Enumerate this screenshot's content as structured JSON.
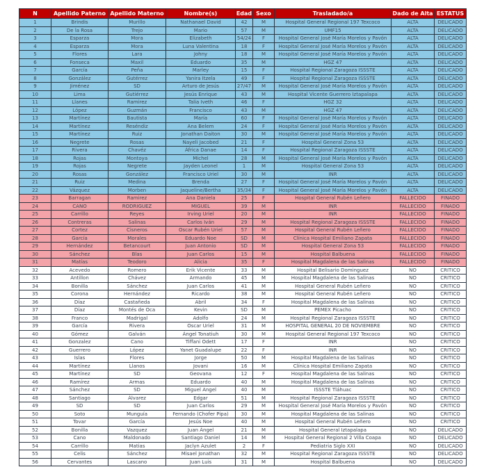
{
  "colors": {
    "header": "#c00000",
    "alta": "#8ecae6",
    "fallecido": "#f4a3a8",
    "no": "#ffffff"
  },
  "headers": [
    "N",
    "Apellido Paterno",
    "Apellido Materno",
    "Nombre(s)",
    "Edad",
    "Sexo",
    "Trasladado/a",
    "Dado de Alta",
    "ESTATUS"
  ],
  "rows": [
    [
      "1",
      "Brindis",
      "Murillo",
      "Nathanael David",
      "42",
      "M",
      "Hospital General Regional 197 Texcoco",
      "ALTA",
      "DELICADO"
    ],
    [
      "2",
      "De la Rosa",
      "Trejo",
      "Mario",
      "57",
      "M",
      "UMF15",
      "ALTA",
      "DELICADO"
    ],
    [
      "3",
      "Esparza",
      "Mora",
      "Elizabeth",
      "54/24",
      "F",
      "Hospital General José María Morelos y Pavón",
      "ALTA",
      "DELICADO"
    ],
    [
      "4",
      "Esparza",
      "Mora",
      "Luna Valentina",
      "18",
      "F",
      "Hospital General José María Morelos y Pavón",
      "ALTA",
      "DELICADO"
    ],
    [
      "5",
      "Flores",
      "Lara",
      "Johny",
      "18",
      "M",
      "Hospital General José María Morelos y Pavón",
      "ALTA",
      "DELICADO"
    ],
    [
      "6",
      "Fonseca",
      "Maxil",
      "Eduardo",
      "35",
      "M",
      "HGZ 47",
      "ALTA",
      "DELICADO"
    ],
    [
      "7",
      "García",
      "Peña",
      "Marley",
      "15",
      "F",
      "Hospital Regional Zaragoza ISSSTE",
      "ALTA",
      "DELICADO"
    ],
    [
      "8",
      "González",
      "Gutérrez",
      "Yanira Itzela",
      "49",
      "F",
      "Hospital Regional Zaragoza ISSSTE",
      "ALTA",
      "DELICADO"
    ],
    [
      "9",
      "Jiménez",
      "SD",
      "Arturo de Jesús",
      "27/47",
      "M",
      "Hospital General José María Morelos y Pavón",
      "ALTA",
      "DELICADO"
    ],
    [
      "10",
      "Lima",
      "Gutiérrez",
      "Jesús Enrique",
      "43",
      "M",
      "Hospital Vicente Guerrero Iztapalapa",
      "ALTA",
      "DELICADO"
    ],
    [
      "11",
      "Llanes",
      "Ramirez",
      "Talia Iveth",
      "46",
      "F",
      "HGZ 32",
      "ALTA",
      "DELICADO"
    ],
    [
      "12",
      "López",
      "Guzmán",
      "Francisco",
      "43",
      "M",
      "HGZ 47",
      "ALTA",
      "DELICADO"
    ],
    [
      "13",
      "Martínez",
      "Bautista",
      "María",
      "60",
      "F",
      "Hospital General José María Morelos y Pavón",
      "ALTA",
      "DELICADO"
    ],
    [
      "14",
      "Martínez",
      "Reséndiz",
      "Ana Belem",
      "24",
      "F",
      "Hospital General José María Morelos y Pavón",
      "ALTA",
      "DELICADO"
    ],
    [
      "15",
      "Martínez",
      "Ruiz",
      "Jonathan Daiton",
      "30",
      "M",
      "Hospital General José María Morelos y Pavón",
      "ALTA",
      "DELICADO"
    ],
    [
      "16",
      "Negrete",
      "Rosas",
      "Nayeli Jacobed",
      "21",
      "F",
      "Hospital General Zona 53",
      "ALTA",
      "DELICADO"
    ],
    [
      "17",
      "Rivera",
      "Chavéz",
      "África Danae",
      "14",
      "F",
      "Hospital Regional Zaragoza ISSSTE",
      "ALTA",
      "DELICADO"
    ],
    [
      "18",
      "Rojas",
      "Montoya",
      "Michel",
      "28",
      "M",
      "Hospital General José María Morelos y Pavón",
      "ALTA",
      "DELICADO"
    ],
    [
      "19",
      "Rojas",
      "Negrete",
      "Jayden Leonel",
      "1",
      "M",
      "Hospital General Zona 53",
      "ALTA",
      "DELICADO"
    ],
    [
      "20",
      "Rosas",
      "González",
      "Francisco Uriel",
      "30",
      "M",
      "INR",
      "ALTA",
      "DELICADO"
    ],
    [
      "21",
      "Ruiz",
      "Medina",
      "Brenda",
      "27",
      "F",
      "Hospital General José María Morelos y Pavón",
      "ALTA",
      "DELICADO"
    ],
    [
      "22",
      "Vázquez",
      "Morben",
      "Jaqueline/Bertha",
      "35/34",
      "F",
      "Hospital General José María Morelos y Pavón",
      "ALTA",
      "DELICADO"
    ],
    [
      "23",
      "Barragan",
      "Ramirez",
      "Ana Daniela",
      "25",
      "F",
      "Hospital General Rubén Leñero",
      "FALLECIDO",
      "FINADO"
    ],
    [
      "24",
      "CANO",
      "RODRIGUEZ",
      "MIGUEL",
      "39",
      "M",
      "INR",
      "FALLECIDO",
      "FINADO"
    ],
    [
      "25",
      "Carrillo",
      "Reyes",
      "Irving Uriel",
      "20",
      "M",
      "INR",
      "FALLECIDO",
      "FINADO"
    ],
    [
      "26",
      "Contreras",
      "Salinas",
      "Carlos Iván",
      "29",
      "M",
      "Hospital Regional Zaragoza ISSSTE",
      "FALLECIDO",
      "FINADO"
    ],
    [
      "27",
      "Cortez",
      "Cisneros",
      "Oscar Rubén Uriel",
      "57",
      "M",
      "Hospital General Rubén Leñero",
      "FALLECIDO",
      "FINADO"
    ],
    [
      "28",
      "García",
      "Morales",
      "Eduardo Noe",
      "SD",
      "M",
      "Clínica Hospital Emiliano Zapata",
      "FALLECIDO",
      "FINADO"
    ],
    [
      "29",
      "Hernández",
      "Betancourt",
      "Juan Antonio",
      "SD",
      "M",
      "Hospital General Zona 53",
      "FALLECIDO",
      "FINADO"
    ],
    [
      "30",
      "Sánchez",
      "Blas",
      "Juan Carlos",
      "15",
      "M",
      "Hospital Balbuena",
      "FALLECIDO",
      "FINADO"
    ],
    [
      "31",
      "Matías",
      "Teodoro",
      "Alicia",
      "35",
      "F",
      "Hospital Magdalena de las Salinas",
      "FALLECIDO",
      "FINADO"
    ],
    [
      "32",
      "Acevedo",
      "Romero",
      "Erik Vicente",
      "33",
      "M",
      "Hospital Belisario Dominguez",
      "NO",
      "CRITICO"
    ],
    [
      "33",
      "Antillon",
      "Chávez",
      "Armando",
      "45",
      "M",
      "Hospital Magdalena de las Salinas",
      "NO",
      "CRITICO"
    ],
    [
      "34",
      "Bonilla",
      "Sánchez",
      "Juan Carlos",
      "41",
      "M",
      "Hospital General Rubén Leñero",
      "NO",
      "CRITICO"
    ],
    [
      "35",
      "Corona",
      "Hernández",
      "Ricardo",
      "38",
      "M",
      "Hospital General Rubén Leñero",
      "NO",
      "CRITICO"
    ],
    [
      "36",
      "Díaz",
      "Castañeda",
      "Abril",
      "34",
      "F",
      "Hospital Magdalena de las Salinas",
      "NO",
      "CRITICO"
    ],
    [
      "37",
      "Díaz",
      "Montés de Oca",
      "Kevin",
      "SD",
      "M",
      "PEMEX Picacho",
      "NO",
      "CRITICO"
    ],
    [
      "38",
      "Franco",
      "Madrigal",
      "Adolfo",
      "24",
      "M",
      "Hospital Regional Zaragoza ISSSTE",
      "NO",
      "CRITICO"
    ],
    [
      "39",
      "García",
      "Rivera",
      "Oscar Uriel",
      "31",
      "M",
      "HOSPITAL GENERAL 20 DE NOVIEMBRE",
      "NO",
      "CRITICO"
    ],
    [
      "40",
      "Gómez",
      "Galván",
      "Ángel Tonatiuh",
      "30",
      "M",
      "Hospital General Regional 197 Texcoco",
      "NO",
      "CRITICO"
    ],
    [
      "41",
      "Gonzalez",
      "Cano",
      "Tiffani Odett",
      "17",
      "F",
      "INR",
      "NO",
      "CRITICO"
    ],
    [
      "42",
      "Guerrero",
      "López",
      "Yanet Guadalupe",
      "22",
      "F",
      "INR",
      "NO",
      "CRITICO"
    ],
    [
      "43",
      "Islas",
      "Flores",
      "Jorge",
      "50",
      "M",
      "Hospital Magdalena de las Salinas",
      "NO",
      "CRITICO"
    ],
    [
      "44",
      "Martínez",
      "Llanos",
      "Jovani",
      "16",
      "M",
      "Clínica Hospital Emiliano Zapata",
      "NO",
      "CRITICO"
    ],
    [
      "45",
      "Martínez",
      "SD",
      "Geovana",
      "12",
      "F",
      "Hospital Magdalena de las Salinas",
      "NO",
      "CRITICO"
    ],
    [
      "46",
      "Ramírez",
      "Armas",
      "Eduardo",
      "40",
      "M",
      "Hospital Magdalena de las Salinas",
      "NO",
      "CRITICO"
    ],
    [
      "47",
      "Sánchez",
      "SD",
      "Miguel Angel",
      "40",
      "M",
      "ISSSTE Tláhuac",
      "NO",
      "CRITICO"
    ],
    [
      "48",
      "Santiago",
      "Álvarez",
      "Edgar",
      "51",
      "M",
      "Hospital Regional Zaragoza ISSSTE",
      "NO",
      "CRITICO"
    ],
    [
      "49",
      "SD",
      "SD",
      "Juan Carlos",
      "29",
      "M",
      "Hospital General José María Morelos y Pavón",
      "NO",
      "CRITICO"
    ],
    [
      "50",
      "Soto",
      "Munguía",
      "Fernando (Chofer Pipa)",
      "30",
      "M",
      "Hospital Magdalena de las Salinas",
      "NO",
      "CRITICO"
    ],
    [
      "51",
      "Tovar",
      "García",
      "Jesús Noe",
      "40",
      "M",
      "Hospital General Rubén Leñero",
      "NO",
      "CRITICO"
    ],
    [
      "52",
      "Bonilla",
      "Vazquez",
      "Juan Ángel",
      "21",
      "M",
      "Hospital General Iztapalapa",
      "NO",
      "DELICADO"
    ],
    [
      "53",
      "Cano",
      "Maldonado",
      "Santiago Daniel",
      "14",
      "M",
      "Hospital General Regional 2 Villa Coapa",
      "NO",
      "DELICADO"
    ],
    [
      "54",
      "Carrillo",
      "Matias",
      "Jaclyn Azulet",
      "2",
      "F",
      "Pediatria Siglo XXI",
      "NO",
      "DELICADO"
    ],
    [
      "55",
      "Celis",
      "Sánchez",
      "Misael Jonathan",
      "32",
      "M",
      "Hospital Regional Zaragoza ISSSTE",
      "NO",
      "DELICADO"
    ],
    [
      "56",
      "Cervantes",
      "Lascano",
      "Juan Luis",
      "31",
      "M",
      "Hospital Balbuena",
      "NO",
      "DELICADO"
    ]
  ]
}
